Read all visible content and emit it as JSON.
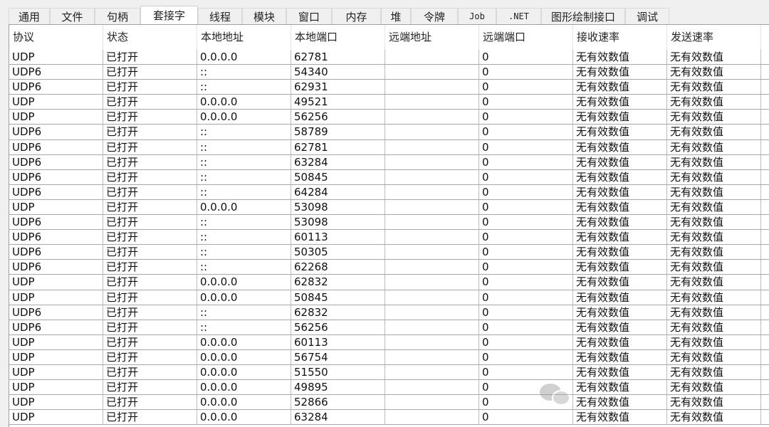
{
  "tabs": [
    {
      "label": "通用",
      "w": 58
    },
    {
      "label": "文件",
      "w": 63
    },
    {
      "label": "句柄",
      "w": 64
    },
    {
      "label": "套接字",
      "w": 81,
      "active": true
    },
    {
      "label": "线程",
      "w": 62
    },
    {
      "label": "模块",
      "w": 62
    },
    {
      "label": "窗口",
      "w": 64
    },
    {
      "label": "内存",
      "w": 69
    },
    {
      "label": "堆",
      "w": 42
    },
    {
      "label": "令牌",
      "w": 66
    },
    {
      "label": "Job",
      "w": 54,
      "mono": true
    },
    {
      "label": ".NET",
      "w": 63,
      "mono": true
    },
    {
      "label": "图形绘制接口",
      "w": 118
    },
    {
      "label": "调试",
      "w": 62
    }
  ],
  "columns": [
    "协议",
    "状态",
    "本地地址",
    "本地端口",
    "远端地址",
    "远端端口",
    "接收速率",
    "发送速率"
  ],
  "rows": [
    [
      "UDP",
      "已打开",
      "0.0.0.0",
      "62781",
      "",
      "0",
      "无有效数值",
      "无有效数值"
    ],
    [
      "UDP6",
      "已打开",
      "::",
      "54340",
      "",
      "0",
      "无有效数值",
      "无有效数值"
    ],
    [
      "UDP6",
      "已打开",
      "::",
      "62931",
      "",
      "0",
      "无有效数值",
      "无有效数值"
    ],
    [
      "UDP",
      "已打开",
      "0.0.0.0",
      "49521",
      "",
      "0",
      "无有效数值",
      "无有效数值"
    ],
    [
      "UDP",
      "已打开",
      "0.0.0.0",
      "56256",
      "",
      "0",
      "无有效数值",
      "无有效数值"
    ],
    [
      "UDP6",
      "已打开",
      "::",
      "58789",
      "",
      "0",
      "无有效数值",
      "无有效数值"
    ],
    [
      "UDP6",
      "已打开",
      "::",
      "62781",
      "",
      "0",
      "无有效数值",
      "无有效数值"
    ],
    [
      "UDP6",
      "已打开",
      "::",
      "63284",
      "",
      "0",
      "无有效数值",
      "无有效数值"
    ],
    [
      "UDP6",
      "已打开",
      "::",
      "50845",
      "",
      "0",
      "无有效数值",
      "无有效数值"
    ],
    [
      "UDP6",
      "已打开",
      "::",
      "64284",
      "",
      "0",
      "无有效数值",
      "无有效数值"
    ],
    [
      "UDP",
      "已打开",
      "0.0.0.0",
      "53098",
      "",
      "0",
      "无有效数值",
      "无有效数值"
    ],
    [
      "UDP6",
      "已打开",
      "::",
      "53098",
      "",
      "0",
      "无有效数值",
      "无有效数值"
    ],
    [
      "UDP6",
      "已打开",
      "::",
      "60113",
      "",
      "0",
      "无有效数值",
      "无有效数值"
    ],
    [
      "UDP6",
      "已打开",
      "::",
      "50305",
      "",
      "0",
      "无有效数值",
      "无有效数值"
    ],
    [
      "UDP6",
      "已打开",
      "::",
      "62268",
      "",
      "0",
      "无有效数值",
      "无有效数值"
    ],
    [
      "UDP",
      "已打开",
      "0.0.0.0",
      "62832",
      "",
      "0",
      "无有效数值",
      "无有效数值"
    ],
    [
      "UDP",
      "已打开",
      "0.0.0.0",
      "50845",
      "",
      "0",
      "无有效数值",
      "无有效数值"
    ],
    [
      "UDP6",
      "已打开",
      "::",
      "62832",
      "",
      "0",
      "无有效数值",
      "无有效数值"
    ],
    [
      "UDP6",
      "已打开",
      "::",
      "56256",
      "",
      "0",
      "无有效数值",
      "无有效数值"
    ],
    [
      "UDP",
      "已打开",
      "0.0.0.0",
      "60113",
      "",
      "0",
      "无有效数值",
      "无有效数值"
    ],
    [
      "UDP",
      "已打开",
      "0.0.0.0",
      "56754",
      "",
      "0",
      "无有效数值",
      "无有效数值"
    ],
    [
      "UDP",
      "已打开",
      "0.0.0.0",
      "51550",
      "",
      "0",
      "无有效数值",
      "无有效数值"
    ],
    [
      "UDP",
      "已打开",
      "0.0.0.0",
      "49895",
      "",
      "0",
      "无有效数值",
      "无有效数值"
    ],
    [
      "UDP",
      "已打开",
      "0.0.0.0",
      "52866",
      "",
      "0",
      "无有效数值",
      "无有效数值"
    ],
    [
      "UDP",
      "已打开",
      "0.0.0.0",
      "63284",
      "",
      "0",
      "无有效数值",
      "无有效数值"
    ]
  ]
}
